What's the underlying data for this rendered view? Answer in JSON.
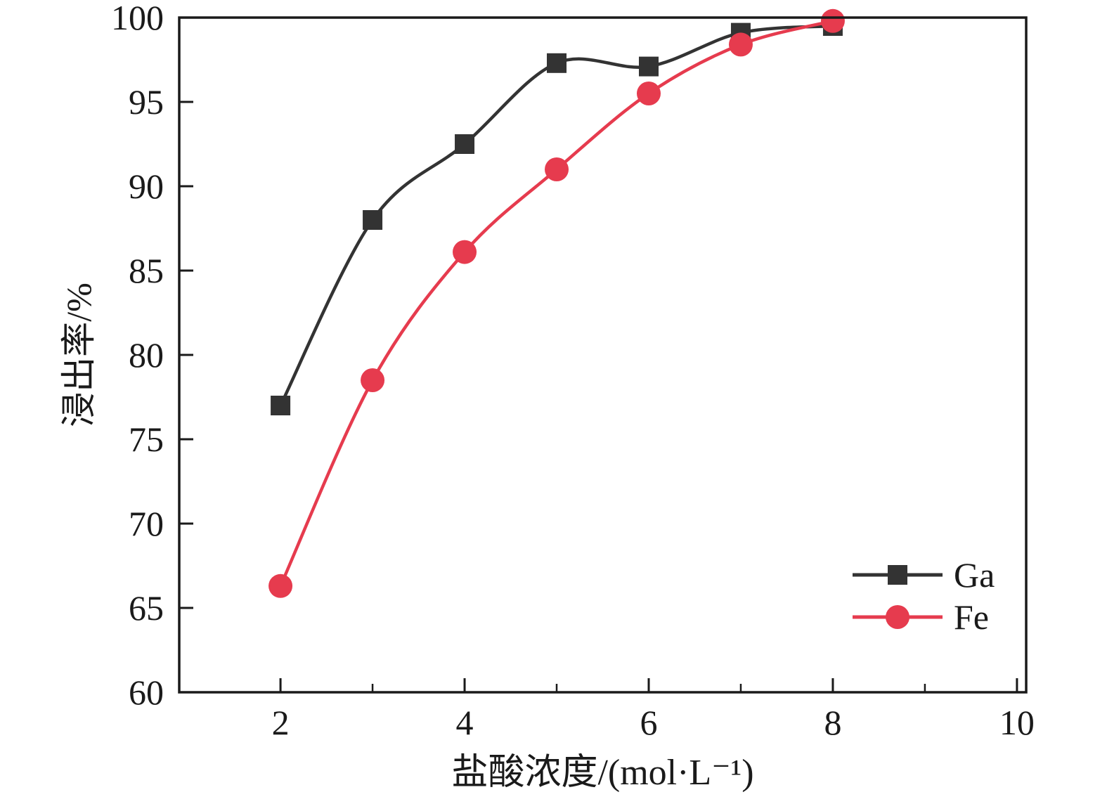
{
  "chart_data": {
    "type": "line",
    "title": "",
    "xlabel": "盐酸浓度/(mol·L⁻¹)",
    "ylabel": "浸出率/%",
    "xlim": [
      0.9,
      10.1
    ],
    "ylim": [
      60,
      100
    ],
    "x_major_ticks": [
      2,
      4,
      6,
      8,
      10
    ],
    "x_minor_ticks": [
      3,
      5,
      7,
      9
    ],
    "y_major_ticks": [
      60,
      65,
      70,
      75,
      80,
      85,
      90,
      95,
      100
    ],
    "grid": false,
    "legend_position": "bottom-right",
    "x": [
      2,
      3,
      4,
      5,
      6,
      7,
      8
    ],
    "series": [
      {
        "name": "Ga",
        "marker": "square",
        "color": "#333333",
        "values": [
          77.0,
          88.0,
          92.5,
          97.3,
          97.1,
          99.1,
          99.5
        ]
      },
      {
        "name": "Fe",
        "marker": "circle",
        "color": "#e63b4e",
        "values": [
          66.3,
          78.5,
          86.1,
          91.0,
          95.5,
          98.4,
          99.8
        ]
      }
    ]
  }
}
